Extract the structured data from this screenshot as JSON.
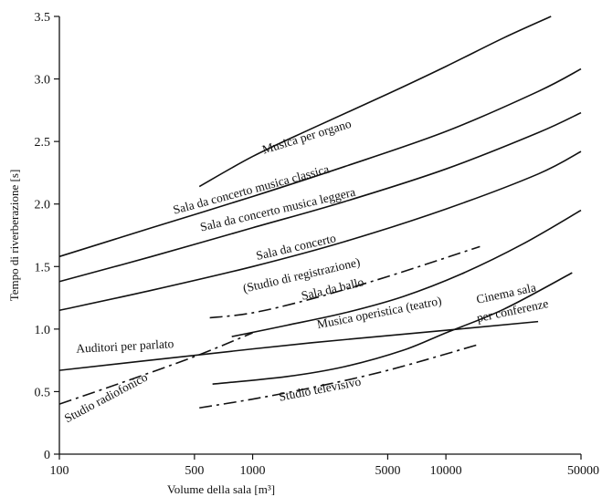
{
  "chart_data": {
    "type": "line",
    "xlabel": "Volume della sala [m³]",
    "ylabel": "Tempo di riverberazione [s]",
    "xscale": "log",
    "xlim": [
      100,
      50000
    ],
    "ylim": [
      0,
      3.5
    ],
    "xticks": [
      {
        "value": 100,
        "label": "100"
      },
      {
        "value": 500,
        "label": "500"
      },
      {
        "value": 1000,
        "label": "1000"
      },
      {
        "value": 5000,
        "label": "5000"
      },
      {
        "value": 10000,
        "label": "10000"
      },
      {
        "value": 50000,
        "label": "50000"
      }
    ],
    "yticks": [
      {
        "value": 0,
        "label": "0"
      },
      {
        "value": 0.5,
        "label": "0.5"
      },
      {
        "value": 1.0,
        "label": "1.0"
      },
      {
        "value": 1.5,
        "label": "1.5"
      },
      {
        "value": 2.0,
        "label": "2.0"
      },
      {
        "value": 2.5,
        "label": "2.5"
      },
      {
        "value": 3.0,
        "label": "3.0"
      },
      {
        "value": 3.5,
        "label": "3.5"
      }
    ],
    "grid": false,
    "legend": "none",
    "series": [
      {
        "id": "organo",
        "dash": "solid",
        "labels": [
          "Musica per organo"
        ],
        "x": [
          530,
          1000,
          2000,
          5000,
          10000,
          20000,
          35000
        ],
        "y": [
          2.14,
          2.38,
          2.6,
          2.88,
          3.1,
          3.33,
          3.5
        ]
      },
      {
        "id": "classica",
        "dash": "solid",
        "labels": [
          "Sala da concerto musica classica"
        ],
        "x": [
          100,
          300,
          1000,
          3000,
          10000,
          30000,
          50000
        ],
        "y": [
          1.58,
          1.81,
          2.06,
          2.3,
          2.58,
          2.9,
          3.08
        ]
      },
      {
        "id": "leggera",
        "dash": "solid",
        "labels": [
          "Sala da concerto musica leggera"
        ],
        "x": [
          100,
          300,
          1000,
          3000,
          10000,
          30000,
          50000
        ],
        "y": [
          1.38,
          1.58,
          1.81,
          2.02,
          2.28,
          2.57,
          2.73
        ]
      },
      {
        "id": "concerto",
        "dash": "solid",
        "labels": [
          "Sala da concerto",
          "(Studio di registrazione)"
        ],
        "x": [
          100,
          300,
          1000,
          3000,
          10000,
          30000,
          50000
        ],
        "y": [
          1.15,
          1.31,
          1.5,
          1.7,
          1.96,
          2.24,
          2.42
        ]
      },
      {
        "id": "ballo",
        "dash": "dashdot",
        "labels": [
          "Sala da ballo"
        ],
        "x": [
          600,
          1000,
          2000,
          5000,
          15000
        ],
        "y": [
          1.09,
          1.13,
          1.24,
          1.42,
          1.66
        ]
      },
      {
        "id": "operistica",
        "dash": "solid",
        "labels": [
          "Musica operistica (teatro)"
        ],
        "x": [
          780,
          1500,
          3000,
          6000,
          12000,
          25000,
          50000
        ],
        "y": [
          0.94,
          1.03,
          1.13,
          1.26,
          1.44,
          1.68,
          1.95
        ]
      },
      {
        "id": "parlato",
        "dash": "solid",
        "labels": [
          "Auditori per parlato"
        ],
        "x": [
          100,
          500,
          2000,
          10000,
          30000
        ],
        "y": [
          0.67,
          0.79,
          0.89,
          0.99,
          1.06
        ]
      },
      {
        "id": "radiofonico",
        "dash": "dashdot",
        "labels": [
          "Studio radiofonico"
        ],
        "x": [
          100,
          200,
          500,
          1000
        ],
        "y": [
          0.4,
          0.56,
          0.78,
          0.97
        ]
      },
      {
        "id": "cinema",
        "dash": "solid",
        "labels": [
          "Cinema sala",
          "per conferenze"
        ],
        "x": [
          620,
          1500,
          3000,
          6000,
          10000,
          20000,
          45000
        ],
        "y": [
          0.56,
          0.62,
          0.7,
          0.83,
          0.97,
          1.16,
          1.45
        ]
      },
      {
        "id": "televisivo",
        "dash": "dashdot",
        "labels": [
          "Studio televisivo"
        ],
        "x": [
          530,
          1000,
          2000,
          5000,
          15000
        ],
        "y": [
          0.37,
          0.44,
          0.53,
          0.67,
          0.88
        ]
      }
    ]
  }
}
